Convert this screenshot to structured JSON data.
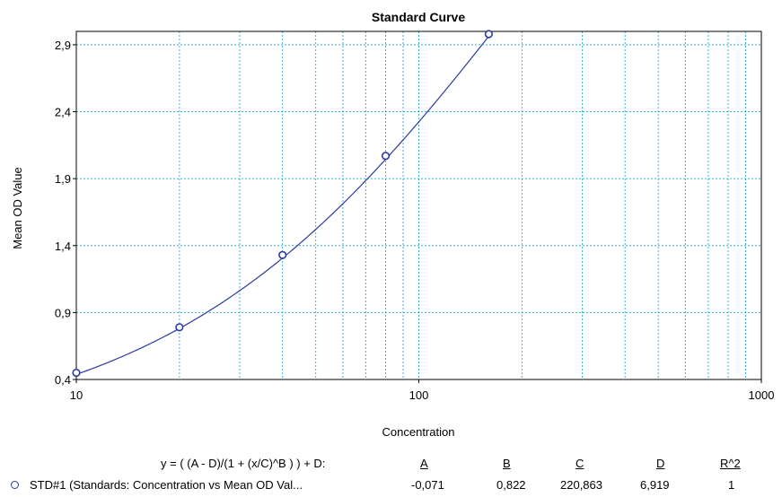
{
  "chart_data": {
    "type": "scatter",
    "title": "Standard Curve",
    "xlabel": "Concentration",
    "ylabel": "Mean OD Value",
    "xscale": "log",
    "xlim": [
      10,
      1000
    ],
    "ylim": [
      0.4,
      3.0
    ],
    "x_ticks": [
      10,
      100,
      1000
    ],
    "x_tick_labels": [
      "10",
      "100",
      "1000"
    ],
    "y_ticks": [
      0.4,
      0.9,
      1.4,
      1.9,
      2.4,
      2.9
    ],
    "y_tick_labels": [
      "0,4",
      "0,9",
      "1,4",
      "1,9",
      "2,4",
      "2,9"
    ],
    "grid": true,
    "series": [
      {
        "name": "STD#1 (Standards: Concentration vs Mean OD Val...",
        "x": [
          10,
          20,
          40,
          80,
          160
        ],
        "y": [
          0.45,
          0.79,
          1.33,
          2.07,
          2.98
        ]
      }
    ],
    "fit": {
      "equation": "y = ( (A - D)/(1 + (x/C)^B ) ) + D:",
      "params": {
        "A": -0.071,
        "B": 0.822,
        "C": 220.863,
        "D": 6.919
      },
      "r2": 1
    },
    "colors": {
      "series": "#2b3a9e",
      "grid": "#33b5e5",
      "axis": "#000000"
    }
  },
  "legend": {
    "equation": "y = ( (A - D)/(1 + (x/C)^B ) ) + D:",
    "headers": [
      "A",
      "B",
      "C",
      "D",
      "R^2"
    ],
    "series_label": "STD#1 (Standards: Concentration vs Mean OD Val...",
    "values": [
      "-0,071",
      "0,822",
      "220,863",
      "6,919",
      "1"
    ]
  }
}
